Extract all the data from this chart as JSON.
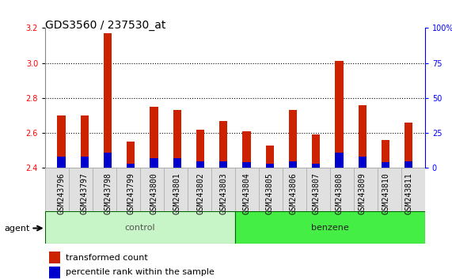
{
  "title": "GDS3560 / 237530_at",
  "samples": [
    "GSM243796",
    "GSM243797",
    "GSM243798",
    "GSM243799",
    "GSM243800",
    "GSM243801",
    "GSM243802",
    "GSM243803",
    "GSM243804",
    "GSM243805",
    "GSM243806",
    "GSM243807",
    "GSM243808",
    "GSM243809",
    "GSM243810",
    "GSM243811"
  ],
  "red_values": [
    2.7,
    2.7,
    3.17,
    2.55,
    2.75,
    2.73,
    2.62,
    2.67,
    2.61,
    2.53,
    2.73,
    2.59,
    3.01,
    2.76,
    2.56,
    2.66
  ],
  "blue_pct": [
    8,
    8,
    11,
    3,
    7,
    7,
    5,
    5,
    4,
    3,
    5,
    3,
    11,
    8,
    4,
    5
  ],
  "baseline": 2.4,
  "ylim_left": [
    2.4,
    3.2
  ],
  "ylim_right": [
    0,
    100
  ],
  "right_ticks": [
    0,
    25,
    50,
    75,
    100
  ],
  "right_tick_labels": [
    "0",
    "25",
    "50",
    "75",
    "100%"
  ],
  "left_ticks": [
    2.4,
    2.6,
    2.8,
    3.0,
    3.2
  ],
  "control_color": "#C8F5C8",
  "benzene_color": "#44EE44",
  "agent_label": "agent",
  "legend_red": "transformed count",
  "legend_blue": "percentile rank within the sample",
  "bar_width": 0.35,
  "red_color": "#CC2200",
  "blue_color": "#0000CC",
  "bg_color": "#ffffff",
  "grid_color": "#000000",
  "title_fontsize": 10,
  "tick_fontsize": 7,
  "label_fontsize": 8,
  "right_tick_color": "blue",
  "num_control": 8,
  "num_benzene": 8
}
